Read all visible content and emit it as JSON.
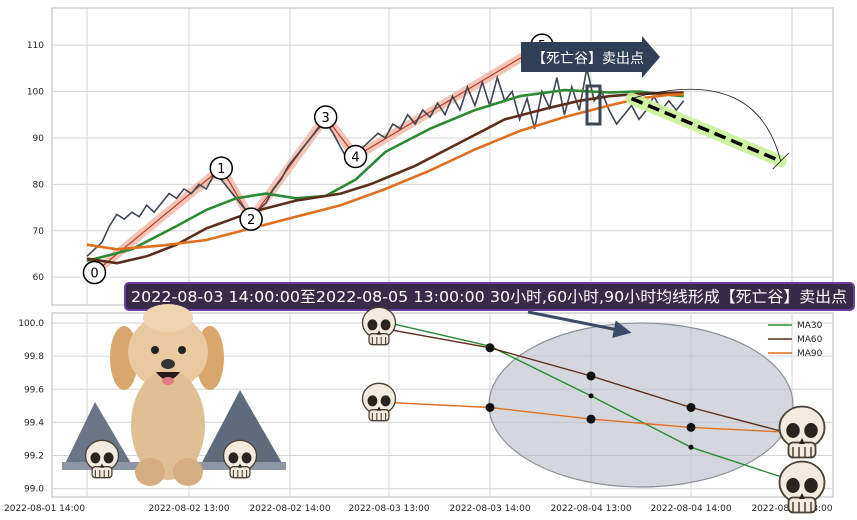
{
  "chart_data": [
    {
      "type": "line",
      "panel": "upper",
      "ylim": [
        54,
        118
      ],
      "yticks": [
        60,
        70,
        80,
        90,
        100,
        110
      ],
      "ytick_labels": [
        "60",
        "70",
        "80",
        "90",
        "100",
        "110"
      ],
      "grid": true,
      "price_series": {
        "color": "#3d4653",
        "points": [
          [
            0,
            64.5
          ],
          [
            0.5,
            66
          ],
          [
            1,
            67.5
          ],
          [
            1.5,
            71
          ],
          [
            2,
            73.5
          ],
          [
            2.5,
            72.5
          ],
          [
            3,
            74
          ],
          [
            3.5,
            73
          ],
          [
            4,
            75.5
          ],
          [
            4.5,
            74
          ],
          [
            5,
            76
          ],
          [
            5.5,
            78
          ],
          [
            6,
            77
          ],
          [
            6.5,
            79
          ],
          [
            7,
            78
          ],
          [
            7.5,
            80
          ],
          [
            8,
            79
          ],
          [
            8.5,
            82
          ],
          [
            9,
            81
          ],
          [
            9.5,
            79
          ],
          [
            10,
            77
          ],
          [
            10.5,
            75
          ],
          [
            11,
            73.5
          ],
          [
            11.5,
            74.5
          ],
          [
            12,
            76
          ],
          [
            12.5,
            79
          ],
          [
            13,
            81
          ],
          [
            13.5,
            84
          ],
          [
            14,
            86
          ],
          [
            14.5,
            88
          ],
          [
            15,
            90
          ],
          [
            15.5,
            92
          ],
          [
            16,
            93.5
          ],
          [
            16.5,
            91
          ],
          [
            17,
            88
          ],
          [
            17.5,
            85
          ],
          [
            18,
            86.5
          ],
          [
            18.5,
            88
          ],
          [
            19,
            89.5
          ],
          [
            19.5,
            91
          ],
          [
            20,
            90
          ],
          [
            20.5,
            93
          ],
          [
            21,
            92
          ],
          [
            21.5,
            95
          ],
          [
            22,
            93
          ],
          [
            22.5,
            96
          ],
          [
            23,
            94.5
          ],
          [
            23.5,
            97.5
          ],
          [
            24,
            95
          ],
          [
            24.5,
            99
          ],
          [
            25,
            96
          ],
          [
            25.5,
            101
          ],
          [
            26,
            97
          ],
          [
            26.5,
            102
          ],
          [
            27,
            97
          ],
          [
            27.5,
            103
          ],
          [
            28,
            98
          ],
          [
            28.5,
            100
          ],
          [
            29,
            94
          ],
          [
            29.5,
            98.5
          ],
          [
            30,
            92
          ],
          [
            30.5,
            100
          ],
          [
            31,
            96.5
          ],
          [
            31.5,
            103
          ],
          [
            32,
            95
          ],
          [
            32.5,
            101
          ],
          [
            33,
            96
          ],
          [
            33.5,
            105
          ],
          [
            34,
            98
          ],
          [
            34.5,
            100
          ],
          [
            35,
            96
          ],
          [
            35.5,
            93
          ],
          [
            36,
            95
          ],
          [
            36.5,
            97
          ],
          [
            37,
            94
          ],
          [
            37.5,
            96
          ],
          [
            38,
            99
          ],
          [
            38.5,
            96
          ],
          [
            39,
            98
          ],
          [
            39.5,
            96
          ],
          [
            40,
            98
          ]
        ]
      },
      "ma_series": [
        {
          "key": "MA30",
          "color": "#2d8a34",
          "points": [
            [
              0,
              63.5
            ],
            [
              3,
              66
            ],
            [
              6,
              71
            ],
            [
              8,
              74.5
            ],
            [
              10,
              77
            ],
            [
              12,
              78
            ],
            [
              14,
              77
            ],
            [
              16,
              77.5
            ],
            [
              18,
              81
            ],
            [
              20,
              87
            ],
            [
              23,
              92
            ],
            [
              26,
              96
            ],
            [
              29,
              99
            ],
            [
              32,
              100.3
            ],
            [
              35,
              99.8
            ],
            [
              37,
              100
            ],
            [
              39,
              99.3
            ],
            [
              40,
              99
            ]
          ]
        },
        {
          "key": "MA60",
          "color": "#5a2e1a",
          "points": [
            [
              0,
              64
            ],
            [
              2,
              63
            ],
            [
              4,
              64.5
            ],
            [
              6,
              67
            ],
            [
              8,
              70.5
            ],
            [
              11,
              74
            ],
            [
              14,
              76.5
            ],
            [
              17,
              78
            ],
            [
              19,
              80
            ],
            [
              22,
              84
            ],
            [
              25,
              89
            ],
            [
              28,
              94
            ],
            [
              31,
              96.5
            ],
            [
              33,
              98
            ],
            [
              35,
              99
            ],
            [
              37,
              99.5
            ],
            [
              39,
              99.7
            ],
            [
              40,
              99.8
            ]
          ]
        },
        {
          "key": "MA90",
          "color": "#e0701f",
          "points": [
            [
              0,
              67
            ],
            [
              2,
              66
            ],
            [
              5,
              66.8
            ],
            [
              8,
              68
            ],
            [
              11,
              70.5
            ],
            [
              14,
              73
            ],
            [
              17,
              75.5
            ],
            [
              20,
              79
            ],
            [
              23,
              83
            ],
            [
              26,
              87.5
            ],
            [
              29,
              91.5
            ],
            [
              32,
              94.5
            ],
            [
              35,
              97
            ],
            [
              37,
              98.5
            ],
            [
              39,
              99.3
            ],
            [
              40,
              99.4
            ]
          ]
        }
      ],
      "pivots": [
        {
          "label": "0",
          "x": 0.5,
          "y": 61
        },
        {
          "label": "1",
          "x": 9,
          "y": 83.5
        },
        {
          "label": "2",
          "x": 11,
          "y": 72.5
        },
        {
          "label": "3",
          "x": 16,
          "y": 94.5
        },
        {
          "label": "4",
          "x": 18,
          "y": 86
        },
        {
          "label": "5",
          "x": 30.5,
          "y": 110
        }
      ],
      "arrow_label": "【死亡谷】卖出点",
      "forecast_line": {
        "from": [
          36.5,
          98.5
        ],
        "to": [
          46.5,
          85
        ]
      }
    },
    {
      "type": "line",
      "panel": "lower",
      "title": "2022-08-03 14:00:00至2022-08-05 13:00:00 30小时,60小时,90小时均线形成【死亡谷】卖出点",
      "x_labels": [
        "2022-08-01 14:00",
        "2022-08-02 13:00",
        "2022-08-02 14:00",
        "2022-08-03 13:00",
        "2022-08-03 14:00",
        "2022-08-04 13:00",
        "2022-08-04 14:00",
        "2022-08-05 13:00"
      ],
      "ylim": [
        98.95,
        100.06
      ],
      "yticks": [
        99.0,
        99.2,
        99.4,
        99.6,
        99.8,
        100.0
      ],
      "ytick_labels": [
        "99.0",
        "99.2",
        "99.4",
        "99.6",
        "99.8",
        "100.0"
      ],
      "legend": [
        {
          "name": "MA30",
          "color": "#2d8a34"
        },
        {
          "name": "MA60",
          "color": "#5a2e1a"
        },
        {
          "name": "MA90",
          "color": "#e0701f"
        }
      ],
      "series": [
        {
          "name": "MA30",
          "color": "#2d8a34",
          "points": [
            [
              3,
              100.0
            ],
            [
              4,
              99.86
            ],
            [
              5,
              99.56
            ],
            [
              6,
              99.25
            ],
            [
              7,
              99.05
            ]
          ]
        },
        {
          "name": "MA60",
          "color": "#5a2e1a",
          "points": [
            [
              3,
              99.96
            ],
            [
              4,
              99.85
            ],
            [
              5,
              99.68
            ],
            [
              6,
              99.49
            ],
            [
              7,
              99.33
            ]
          ]
        },
        {
          "name": "MA90",
          "color": "#e0701f",
          "points": [
            [
              3,
              99.52
            ],
            [
              4,
              99.49
            ],
            [
              5,
              99.42
            ],
            [
              6,
              99.37
            ],
            [
              7,
              99.34
            ]
          ]
        }
      ]
    }
  ]
}
